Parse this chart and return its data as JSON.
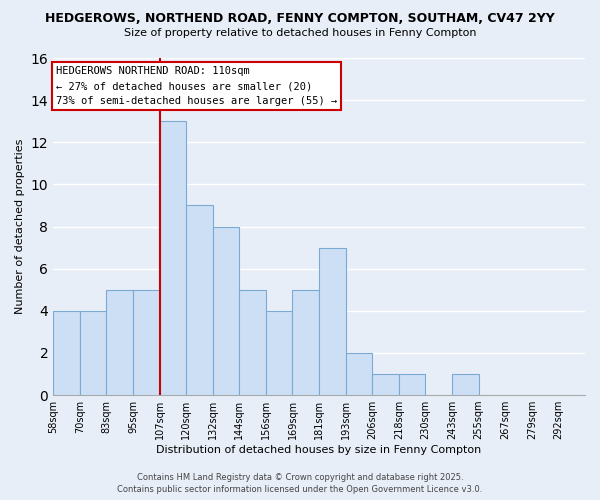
{
  "title": "HEDGEROWS, NORTHEND ROAD, FENNY COMPTON, SOUTHAM, CV47 2YY",
  "subtitle": "Size of property relative to detached houses in Fenny Compton",
  "xlabel": "Distribution of detached houses by size in Fenny Compton",
  "ylabel": "Number of detached properties",
  "bin_labels": [
    "58sqm",
    "70sqm",
    "83sqm",
    "95sqm",
    "107sqm",
    "120sqm",
    "132sqm",
    "144sqm",
    "156sqm",
    "169sqm",
    "181sqm",
    "193sqm",
    "206sqm",
    "218sqm",
    "230sqm",
    "243sqm",
    "255sqm",
    "267sqm",
    "279sqm",
    "292sqm"
  ],
  "bar_heights": [
    4,
    4,
    5,
    5,
    13,
    9,
    8,
    5,
    4,
    5,
    7,
    2,
    1,
    1,
    0,
    1,
    0,
    0,
    0,
    0
  ],
  "bar_color": "#cddff5",
  "bar_edge_color": "#7aaad4",
  "vline_index": 4,
  "vline_color": "#cc0000",
  "annotation_text": "HEDGEROWS NORTHEND ROAD: 110sqm\n← 27% of detached houses are smaller (20)\n73% of semi-detached houses are larger (55) →",
  "annotation_box_color": "#ffffff",
  "annotation_box_edge": "#cc0000",
  "ylim": [
    0,
    16
  ],
  "yticks": [
    0,
    2,
    4,
    6,
    8,
    10,
    12,
    14,
    16
  ],
  "bg_color": "#e8eef8",
  "grid_color": "#ffffff",
  "footer_line1": "Contains HM Land Registry data © Crown copyright and database right 2025.",
  "footer_line2": "Contains public sector information licensed under the Open Government Licence v3.0."
}
